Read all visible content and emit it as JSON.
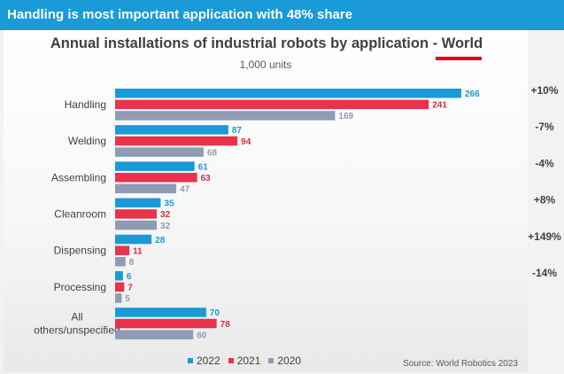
{
  "banner": "Handling is most important application with 48% share",
  "title_prefix": "Annual installations of industrial robots by application - ",
  "title_highlight": "World",
  "subtitle": "1,000 units",
  "source": "Source: World Robotics 2023",
  "colors": {
    "2022": "#1a9ad6",
    "2021": "#e8334a",
    "2020": "#8e9bb3",
    "underline": "#e3000f"
  },
  "chart_data": {
    "type": "bar",
    "orientation": "horizontal",
    "categories": [
      "Handling",
      "Welding",
      "Assembling",
      "Cleanroom",
      "Dispensing",
      "Processing",
      "All others/unspecified"
    ],
    "category_lines": [
      [
        "Handling"
      ],
      [
        "Welding"
      ],
      [
        "Assembling"
      ],
      [
        "Cleanroom"
      ],
      [
        "Dispensing"
      ],
      [
        "Processing"
      ],
      [
        "All",
        "others/unspecified"
      ]
    ],
    "series": [
      {
        "name": "2022",
        "values": [
          266,
          87,
          61,
          35,
          28,
          6,
          70
        ]
      },
      {
        "name": "2021",
        "values": [
          241,
          94,
          63,
          32,
          11,
          7,
          78
        ]
      },
      {
        "name": "2020",
        "values": [
          169,
          68,
          47,
          32,
          8,
          5,
          60
        ]
      }
    ],
    "changes": [
      "+10%",
      "-7%",
      "-4%",
      "+8%",
      "+149%",
      "-14%",
      ""
    ],
    "xlim": [
      0,
      266
    ],
    "title": "Annual installations of industrial robots by application - World",
    "unit": "1,000 units"
  }
}
